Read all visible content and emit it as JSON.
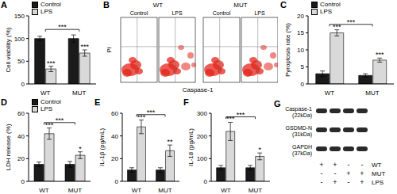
{
  "chart_data": [
    {
      "panel": "A",
      "type": "bar",
      "categories": [
        "WT",
        "MUT"
      ],
      "y_label": "Cell viability (%)",
      "ylim": [
        0,
        150
      ],
      "yticks": [
        0,
        50,
        100,
        150
      ],
      "legend": "upper left",
      "series": [
        {
          "name": "Control",
          "color": "#1a1a1a",
          "values": [
            100,
            100
          ],
          "errors": [
            5,
            8
          ]
        },
        {
          "name": "LPS",
          "color": "#d9d9d9",
          "values": [
            33,
            68
          ],
          "errors": [
            6,
            7
          ],
          "annotations": [
            "***",
            "***"
          ]
        }
      ],
      "comparisons": [
        {
          "from": "WT",
          "to": "MUT",
          "label": "***"
        }
      ]
    },
    {
      "panel": "C",
      "type": "bar",
      "categories": [
        "WT",
        "MUT"
      ],
      "y_label": "Pyroptosis rate (%)",
      "ylim": [
        0,
        20
      ],
      "yticks": [
        0,
        5,
        10,
        15,
        20
      ],
      "legend": "upper left",
      "series": [
        {
          "name": "Control",
          "color": "#1a1a1a",
          "values": [
            3,
            2.5
          ],
          "errors": [
            0.8,
            0.5
          ]
        },
        {
          "name": "LPS",
          "color": "#d9d9d9",
          "values": [
            15,
            7
          ],
          "errors": [
            0.9,
            0.6
          ],
          "annotations": [
            "***",
            "***"
          ]
        }
      ],
      "comparisons": [
        {
          "from": "WT",
          "to": "MUT",
          "label": "***"
        }
      ]
    },
    {
      "panel": "D",
      "type": "bar",
      "categories": [
        "WT",
        "MUT"
      ],
      "y_label": "LDH release (%)",
      "ylim": [
        0,
        60
      ],
      "yticks": [
        0,
        20,
        40,
        60
      ],
      "legend": "upper left",
      "series": [
        {
          "name": "Control",
          "color": "#1a1a1a",
          "values": [
            15,
            15
          ],
          "errors": [
            2,
            2.5
          ]
        },
        {
          "name": "LPS",
          "color": "#d9d9d9",
          "values": [
            42,
            23
          ],
          "errors": [
            5,
            3
          ],
          "annotations": [
            "***",
            "*"
          ]
        }
      ],
      "comparisons": [
        {
          "from": "WT",
          "to": "MUT",
          "label": "***"
        }
      ]
    },
    {
      "panel": "E",
      "type": "bar",
      "categories": [
        "WT",
        "MUT"
      ],
      "y_label": "IL-1β (pg/mL)",
      "ylim": [
        0,
        60
      ],
      "yticks": [
        0,
        20,
        40,
        60
      ],
      "series": [
        {
          "name": "Control",
          "color": "#1a1a1a",
          "values": [
            10,
            10
          ],
          "errors": [
            2,
            2
          ]
        },
        {
          "name": "LPS",
          "color": "#d9d9d9",
          "values": [
            48,
            27
          ],
          "errors": [
            6,
            5
          ],
          "annotations": [
            "***",
            "**"
          ]
        }
      ],
      "comparisons": [
        {
          "from": "WT",
          "to": "MUT",
          "label": "***"
        }
      ]
    },
    {
      "panel": "F",
      "type": "bar",
      "categories": [
        "WT",
        "MUT"
      ],
      "y_label": "IL-18 (pg/mL)",
      "ylim": [
        0,
        300
      ],
      "yticks": [
        0,
        100,
        200,
        300
      ],
      "series": [
        {
          "name": "Control",
          "color": "#1a1a1a",
          "values": [
            60,
            60
          ],
          "errors": [
            10,
            10
          ]
        },
        {
          "name": "LPS",
          "color": "#d9d9d9",
          "values": [
            220,
            110
          ],
          "errors": [
            40,
            15
          ],
          "annotations": [
            "***",
            "*"
          ]
        }
      ],
      "comparisons": [
        {
          "from": "WT",
          "to": "MUT",
          "label": "***"
        }
      ]
    }
  ],
  "flow_cytometry": {
    "panel": "B",
    "x_label": "Caspase-1",
    "y_label": "PI",
    "groups": [
      {
        "label": "WT",
        "conditions": [
          "Control",
          "LPS"
        ]
      },
      {
        "label": "MUT",
        "conditions": [
          "Control",
          "LPS"
        ]
      }
    ]
  },
  "western_blot": {
    "panel": "G",
    "bands": [
      {
        "label": "Caspase-1",
        "size": "(22kDa)"
      },
      {
        "label": "GSDMD-N",
        "size": "(31kDa)"
      },
      {
        "label": "GAPDH",
        "size": "(37kDa)"
      }
    ],
    "conditions": [
      {
        "label": "WT",
        "marks": [
          "+",
          "+",
          "-",
          "-"
        ]
      },
      {
        "label": "MUT",
        "marks": [
          "-",
          "-",
          "+",
          "+"
        ]
      },
      {
        "label": "LPS",
        "marks": [
          "-",
          "+",
          "-",
          "+"
        ]
      }
    ]
  }
}
